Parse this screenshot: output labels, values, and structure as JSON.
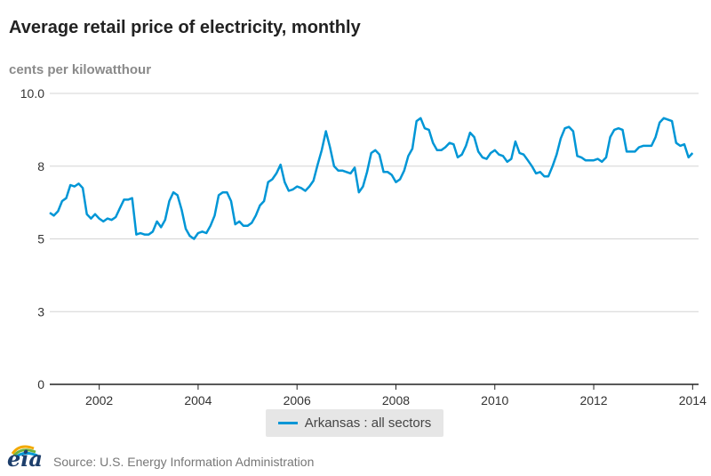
{
  "chart_data": {
    "type": "line",
    "title": "Average retail price of electricity, monthly",
    "ylabel": "cents per kilowatthour",
    "xlabel": "",
    "ylim": [
      0,
      10
    ],
    "xlim": [
      2001,
      2014.12
    ],
    "yticks": [
      0,
      2.5,
      5,
      7.5,
      10
    ],
    "ytick_labels": [
      "0",
      "3",
      "5",
      "8",
      "10.0"
    ],
    "xticks": [
      2002,
      2004,
      2006,
      2008,
      2010,
      2012,
      2014
    ],
    "xtick_labels": [
      "2002",
      "2004",
      "2006",
      "2008",
      "2010",
      "2012",
      "2014"
    ],
    "grid": true,
    "legend_position": "bottom-center",
    "series": [
      {
        "name": "Arkansas : all sectors",
        "color": "#0096d6",
        "start": 2001.0,
        "step_months": 1,
        "values": [
          5.9,
          5.8,
          5.95,
          6.3,
          6.4,
          6.85,
          6.8,
          6.9,
          6.75,
          5.85,
          5.7,
          5.85,
          5.7,
          5.6,
          5.7,
          5.65,
          5.75,
          6.05,
          6.35,
          6.35,
          6.4,
          5.15,
          5.2,
          5.15,
          5.15,
          5.25,
          5.6,
          5.4,
          5.65,
          6.3,
          6.6,
          6.5,
          6.0,
          5.35,
          5.1,
          5.0,
          5.2,
          5.25,
          5.2,
          5.45,
          5.8,
          6.5,
          6.6,
          6.6,
          6.3,
          5.5,
          5.6,
          5.45,
          5.45,
          5.55,
          5.8,
          6.15,
          6.3,
          6.95,
          7.05,
          7.25,
          7.55,
          6.95,
          6.65,
          6.7,
          6.8,
          6.75,
          6.65,
          6.8,
          7.0,
          7.55,
          8.05,
          8.7,
          8.15,
          7.5,
          7.35,
          7.35,
          7.3,
          7.25,
          7.45,
          6.6,
          6.8,
          7.3,
          7.95,
          8.05,
          7.9,
          7.3,
          7.3,
          7.2,
          6.95,
          7.05,
          7.35,
          7.85,
          8.1,
          9.05,
          9.15,
          8.8,
          8.75,
          8.3,
          8.05,
          8.05,
          8.15,
          8.3,
          8.25,
          7.8,
          7.9,
          8.2,
          8.65,
          8.5,
          8.0,
          7.8,
          7.75,
          7.95,
          8.05,
          7.9,
          7.85,
          7.65,
          7.75,
          8.35,
          7.95,
          7.9,
          7.7,
          7.5,
          7.25,
          7.3,
          7.15,
          7.15,
          7.5,
          7.9,
          8.45,
          8.8,
          8.85,
          8.7,
          7.85,
          7.8,
          7.7,
          7.7,
          7.7,
          7.75,
          7.65,
          7.8,
          8.5,
          8.75,
          8.8,
          8.75,
          8.0,
          8.0,
          8.0,
          8.15,
          8.2,
          8.2,
          8.2,
          8.5,
          9.0,
          9.15,
          9.1,
          9.05,
          8.3,
          8.2,
          8.25,
          7.8,
          7.95
        ]
      }
    ]
  },
  "footer": {
    "logo_text": "eia",
    "source": "Source: U.S. Energy Information Administration"
  },
  "colors": {
    "line": "#0096d6",
    "grid": "#d4d4d4",
    "axis": "#222222",
    "logo": "#1d3e6b"
  }
}
